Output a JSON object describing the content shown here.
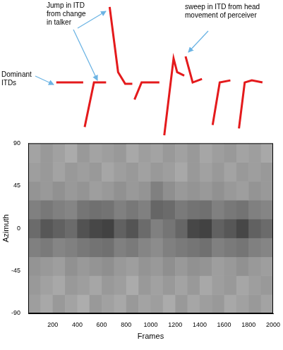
{
  "chart_data": [
    {
      "type": "line",
      "x": [
        229,
        449,
        455,
        461,
        537,
        636,
        650,
        665,
        734,
        792,
        850,
        859,
        868,
        926,
        1071,
        1090,
        1111,
        1187,
        1216,
        1274,
        1280,
        1285,
        1343,
        1419,
        1460,
        1506,
        1564,
        1651,
        1690,
        1721,
        1768,
        1826,
        1913
      ],
      "values": [
        80,
        80,
        null,
        15,
        80,
        80,
        null,
        190,
        95,
        78,
        78,
        null,
        55,
        80,
        80,
        null,
        3,
        115,
        95,
        90,
        null,
        118,
        80,
        85,
        null,
        18,
        80,
        83,
        null,
        13,
        80,
        83,
        80
      ],
      "color": "#e41a1c",
      "xlim": [
        0,
        2000
      ],
      "ylim": [
        0,
        195
      ],
      "tick_labels": false,
      "annotations": [
        "Jump in ITD from change in talker",
        "Dominant ITDs",
        "sweep in ITD from head movement of perceiver"
      ]
    },
    {
      "type": "heatmap",
      "x_label": "Frames",
      "y_label": "Azimuth",
      "xlim": [
        0,
        2000
      ],
      "ylim": [
        -90,
        90
      ],
      "xticks": [
        200,
        400,
        600,
        800,
        1000,
        1200,
        1400,
        1600,
        1800,
        2000
      ],
      "yticks": [
        -90,
        -45,
        0,
        45,
        90
      ],
      "grid": false,
      "x_edges": [
        0,
        100,
        200,
        300,
        400,
        500,
        600,
        700,
        800,
        900,
        1000,
        1100,
        1200,
        1300,
        1400,
        1500,
        1600,
        1700,
        1800,
        1900,
        2000
      ],
      "y_edges": [
        -90,
        -70,
        -50,
        -30,
        -10,
        10,
        30,
        50,
        70,
        90
      ],
      "zlim": [
        0,
        1
      ],
      "cells": [
        [
          0.62,
          0.66,
          0.6,
          0.64,
          0.68,
          0.6,
          0.63,
          0.66,
          0.6,
          0.64,
          0.62,
          0.67,
          0.6,
          0.65,
          0.62,
          0.6,
          0.66,
          0.63,
          0.6,
          0.64
        ],
        [
          0.6,
          0.63,
          0.66,
          0.6,
          0.62,
          0.65,
          0.6,
          0.62,
          0.67,
          0.6,
          0.63,
          0.6,
          0.64,
          0.6,
          0.66,
          0.62,
          0.6,
          0.65,
          0.62,
          0.6
        ],
        [
          0.58,
          0.6,
          0.62,
          0.57,
          0.6,
          0.58,
          0.56,
          0.6,
          0.62,
          0.58,
          0.6,
          0.56,
          0.6,
          0.57,
          0.58,
          0.62,
          0.6,
          0.57,
          0.6,
          0.62
        ],
        [
          0.5,
          0.48,
          0.52,
          0.5,
          0.47,
          0.45,
          0.44,
          0.5,
          0.48,
          0.52,
          0.55,
          0.5,
          0.48,
          0.46,
          0.44,
          0.5,
          0.48,
          0.46,
          0.5,
          0.52
        ],
        [
          0.42,
          0.34,
          0.38,
          0.42,
          0.32,
          0.28,
          0.26,
          0.38,
          0.33,
          0.42,
          0.5,
          0.46,
          0.4,
          0.28,
          0.26,
          0.38,
          0.34,
          0.28,
          0.38,
          0.42
        ],
        [
          0.5,
          0.47,
          0.5,
          0.52,
          0.46,
          0.44,
          0.45,
          0.5,
          0.47,
          0.5,
          0.4,
          0.42,
          0.48,
          0.45,
          0.44,
          0.5,
          0.47,
          0.45,
          0.5,
          0.52
        ],
        [
          0.58,
          0.6,
          0.57,
          0.6,
          0.58,
          0.62,
          0.6,
          0.57,
          0.6,
          0.58,
          0.5,
          0.56,
          0.6,
          0.58,
          0.6,
          0.57,
          0.6,
          0.62,
          0.58,
          0.6
        ],
        [
          0.62,
          0.6,
          0.64,
          0.6,
          0.62,
          0.6,
          0.65,
          0.62,
          0.6,
          0.63,
          0.6,
          0.62,
          0.66,
          0.6,
          0.63,
          0.6,
          0.64,
          0.6,
          0.62,
          0.6
        ],
        [
          0.64,
          0.6,
          0.63,
          0.67,
          0.6,
          0.64,
          0.62,
          0.6,
          0.66,
          0.62,
          0.64,
          0.6,
          0.63,
          0.6,
          0.65,
          0.62,
          0.6,
          0.64,
          0.62,
          0.66
        ]
      ]
    }
  ]
}
